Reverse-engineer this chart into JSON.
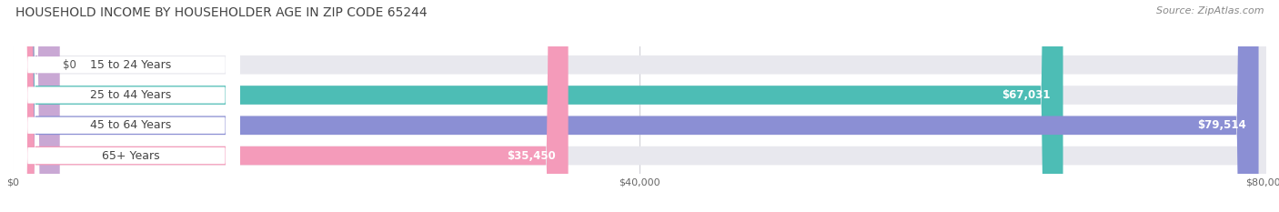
{
  "title": "HOUSEHOLD INCOME BY HOUSEHOLDER AGE IN ZIP CODE 65244",
  "source": "Source: ZipAtlas.com",
  "categories": [
    "15 to 24 Years",
    "25 to 44 Years",
    "45 to 64 Years",
    "65+ Years"
  ],
  "values": [
    0,
    67031,
    79514,
    35450
  ],
  "bar_colors": [
    "#c9a8d4",
    "#4dbdb5",
    "#8b8fd4",
    "#f49bba"
  ],
  "bar_bg_color": "#e8e8ee",
  "xlim": [
    0,
    80000
  ],
  "xticks": [
    0,
    40000,
    80000
  ],
  "xtick_labels": [
    "$0",
    "$40,000",
    "$80,000"
  ],
  "value_labels": [
    "$0",
    "$67,031",
    "$79,514",
    "$35,450"
  ],
  "title_fontsize": 10,
  "source_fontsize": 8,
  "label_fontsize": 9,
  "bar_height": 0.62,
  "background_color": "#ffffff",
  "grid_color": "#d0d0d8"
}
